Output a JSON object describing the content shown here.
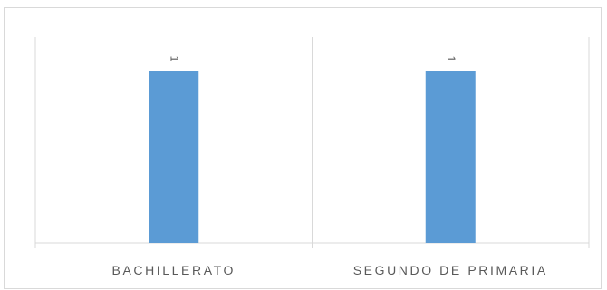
{
  "chart_data": {
    "type": "bar",
    "categories": [
      "BACHILLERATO",
      "SEGUNDO DE PRIMARIA"
    ],
    "values": [
      1,
      1
    ],
    "data_labels": [
      "1",
      "1"
    ],
    "ylim": [
      0,
      1.2
    ],
    "grid": false,
    "legend": "none",
    "colors": {
      "bar": "#5b9bd5",
      "axis": "#d9d9d9",
      "text": "#595959"
    }
  }
}
